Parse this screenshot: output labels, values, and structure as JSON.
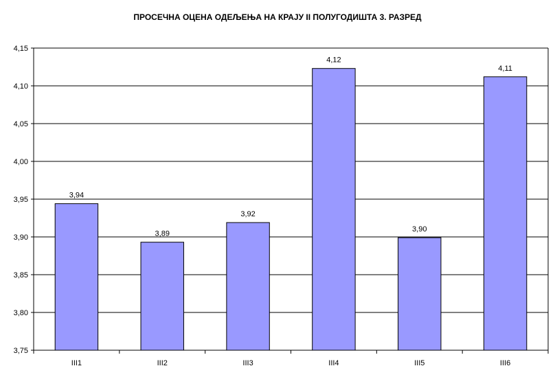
{
  "chart_data": {
    "type": "bar",
    "title": "ПРОСЕЧНА ОЦЕНА ОДЕЉЕЊА НА КРАЈУ  II ПОЛУГОДИШТА 3. РАЗРЕД",
    "categories": [
      "III1",
      "III2",
      "III3",
      "III4",
      "III5",
      "III6"
    ],
    "values": [
      3.944,
      3.893,
      3.919,
      4.123,
      3.899,
      4.112
    ],
    "data_labels": [
      "3,94",
      "3,89",
      "3,92",
      "4,12",
      "3,90",
      "4,11"
    ],
    "ylim": [
      3.75,
      4.15
    ],
    "yticks": [
      3.75,
      3.8,
      3.85,
      3.9,
      3.95,
      4.0,
      4.05,
      4.1,
      4.15
    ],
    "ytick_labels": [
      "3,75",
      "3,80",
      "3,85",
      "3,90",
      "3,95",
      "4,00",
      "4,05",
      "4,10",
      "4,15"
    ],
    "xlabel": "",
    "ylabel": "",
    "grid": true,
    "legend": "none",
    "bar_color": "#9999ff",
    "bar_edge_color": "#000000",
    "grid_color": "#000000"
  }
}
